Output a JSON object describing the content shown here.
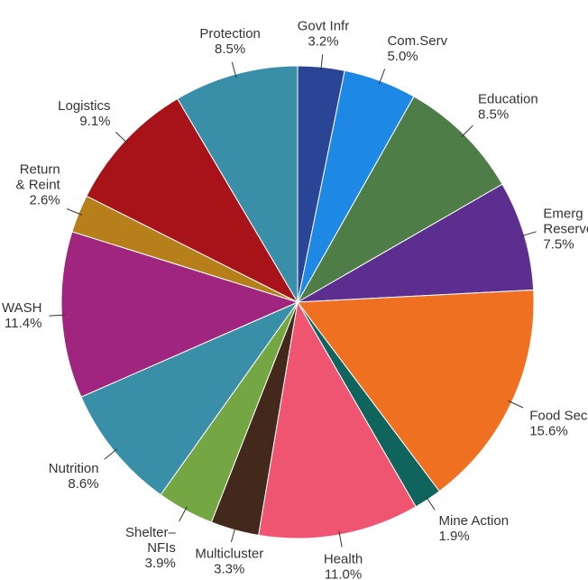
{
  "chart_data": {
    "type": "pie",
    "categories": [
      "Govt Infr",
      "Com.Serv",
      "Education",
      "Emerg\nReserve",
      "Food Sec",
      "Mine Action",
      "Health",
      "Multicluster",
      "Shelter–\nNFIs",
      "Nutrition",
      "WASH",
      "Return\n& Reint",
      "Logistics",
      "Protection"
    ],
    "values": [
      3.2,
      5.0,
      8.5,
      7.5,
      15.6,
      1.9,
      11.0,
      3.3,
      3.9,
      8.6,
      11.4,
      2.6,
      9.1,
      8.5
    ],
    "value_labels": [
      "3.2%",
      "5.0%",
      "8.5%",
      "7.5%",
      "15.6%",
      "1.9%",
      "11.0%",
      "3.3%",
      "3.9%",
      "8.6%",
      "11.4%",
      "2.6%",
      "9.1%",
      "8.5%"
    ],
    "colors": [
      "#2a4596",
      "#1e88e5",
      "#4e7d48",
      "#5b2e8f",
      "#f07021",
      "#10645e",
      "#ef5470",
      "#43291b",
      "#74a744",
      "#3a8fa8",
      "#a0257f",
      "#b77f1a",
      "#a81319",
      "#3a8fa8"
    ]
  }
}
